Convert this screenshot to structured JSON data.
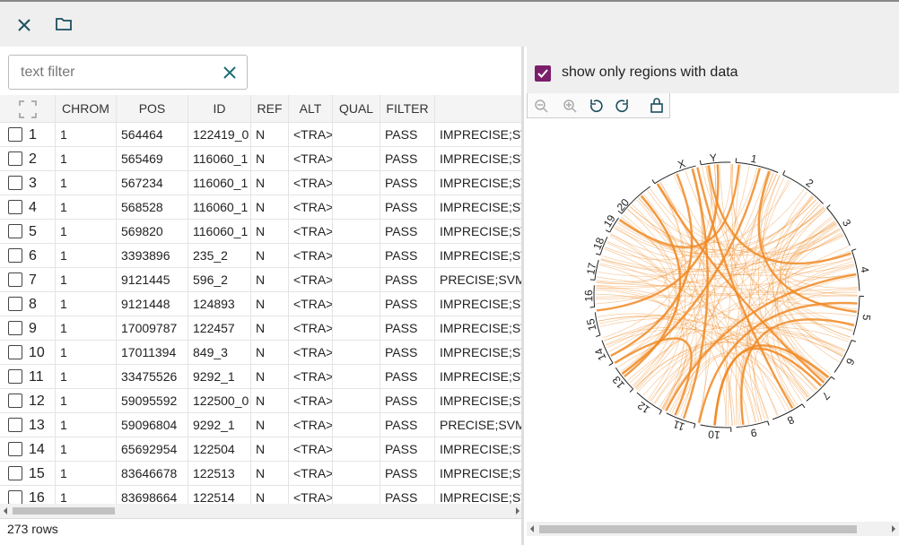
{
  "filter": {
    "placeholder": "text filter"
  },
  "table": {
    "columns": [
      "CHROM",
      "POS",
      "ID",
      "REF",
      "ALT",
      "QUAL",
      "FILTER"
    ],
    "rows": [
      [
        "1",
        "1",
        "564464",
        "122419_0",
        "N",
        "<TRA>",
        "PASS",
        "IMPRECISE;SV"
      ],
      [
        "2",
        "1",
        "565469",
        "116060_1",
        "N",
        "<TRA>",
        "PASS",
        "IMPRECISE;SV"
      ],
      [
        "3",
        "1",
        "567234",
        "116060_1",
        "N",
        "<TRA>",
        "PASS",
        "IMPRECISE;SV"
      ],
      [
        "4",
        "1",
        "568528",
        "116060_1",
        "N",
        "<TRA>",
        "PASS",
        "IMPRECISE;SV"
      ],
      [
        "5",
        "1",
        "569820",
        "116060_1",
        "N",
        "<TRA>",
        "PASS",
        "IMPRECISE;SV"
      ],
      [
        "6",
        "1",
        "3393896",
        "235_2",
        "N",
        "<TRA>",
        "PASS",
        "IMPRECISE;SV"
      ],
      [
        "7",
        "1",
        "9121445",
        "596_2",
        "N",
        "<TRA>",
        "PASS",
        "PRECISE;SVME"
      ],
      [
        "8",
        "1",
        "9121448",
        "124893",
        "N",
        "<TRA>",
        "PASS",
        "IMPRECISE;SV"
      ],
      [
        "9",
        "1",
        "17009787",
        "122457",
        "N",
        "<TRA>",
        "PASS",
        "IMPRECISE;SV"
      ],
      [
        "10",
        "1",
        "17011394",
        "849_3",
        "N",
        "<TRA>",
        "PASS",
        "IMPRECISE;SV"
      ],
      [
        "11",
        "1",
        "33475526",
        "9292_1",
        "N",
        "<TRA>",
        "PASS",
        "IMPRECISE;SV"
      ],
      [
        "12",
        "1",
        "59095592",
        "122500_0",
        "N",
        "<TRA>",
        "PASS",
        "IMPRECISE;SV"
      ],
      [
        "13",
        "1",
        "59096804",
        "9292_1",
        "N",
        "<TRA>",
        "PASS",
        "PRECISE;SVME"
      ],
      [
        "14",
        "1",
        "65692954",
        "122504",
        "N",
        "<TRA>",
        "PASS",
        "IMPRECISE;SV"
      ],
      [
        "15",
        "1",
        "83646678",
        "122513",
        "N",
        "<TRA>",
        "PASS",
        "IMPRECISE;SV"
      ],
      [
        "16",
        "1",
        "83698664",
        "122514",
        "N",
        "<TRA>",
        "PASS",
        "IMPRECISE;SV"
      ]
    ]
  },
  "footer": "273 rows",
  "circos": {
    "option": "show only regions with data",
    "labels": [
      "1",
      "2",
      "3",
      "4",
      "5",
      "6",
      "7",
      "8",
      "9",
      "10",
      "11",
      "12",
      "13",
      "14",
      "15",
      "16",
      "17",
      "18",
      "19",
      "20",
      "X",
      "Y"
    ]
  }
}
